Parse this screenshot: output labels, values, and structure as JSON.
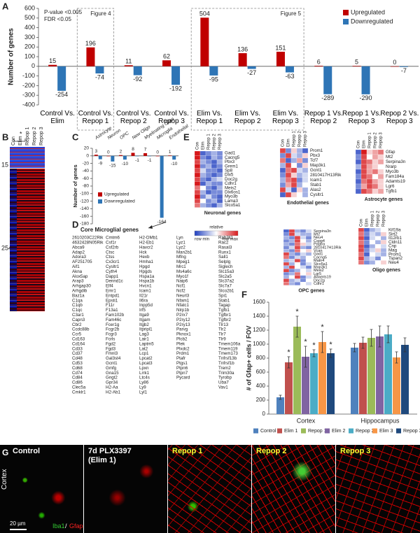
{
  "panel_labels": [
    "A",
    "B",
    "C",
    "D",
    "E",
    "F",
    "G"
  ],
  "chart_data": [
    {
      "type": "bar",
      "y_label": "Number of genes",
      "annotations": [
        "P-value <0.005",
        "FDR <0.05"
      ],
      "boxes": [
        "Figure 4",
        "Figure 5"
      ],
      "categories": [
        "Control Vs. Elim",
        "Control Vs. Repop 1",
        "Control Vs. Repop 2",
        "Control Vs. Repop 3",
        "Elim Vs. Repop 1",
        "Elim Vs. Repop 2",
        "Elim Vs. Repop 3",
        "Repop 1 Vs. Repop 2",
        "Repop 1 Vs. Repop 3",
        "Repop 2 Vs. Repop 3"
      ],
      "series": [
        {
          "name": "Upregulated",
          "color": "#c00000",
          "values": [
            15,
            196,
            11,
            62,
            504,
            136,
            151,
            6,
            5,
            0
          ]
        },
        {
          "name": "Downregulated",
          "color": "#2e75b6",
          "values": [
            -254,
            -74,
            -92,
            -192,
            -95,
            -27,
            -63,
            -289,
            -290,
            -7
          ]
        }
      ],
      "ylim": [
        -400,
        600
      ],
      "yticks": [
        -400,
        -300,
        -200,
        -100,
        0,
        100,
        200,
        300,
        400,
        500,
        600
      ],
      "legend": "upper right"
    },
    {
      "type": "bar",
      "y_label": "Number of genes",
      "categories": [
        "Astrocyte",
        "Neuron",
        "OPC",
        "New Oligo",
        "Myelinating Oligo",
        "Microglia",
        "Endothelial"
      ],
      "series": [
        {
          "name": "Upregulated",
          "color": "#c00000",
          "values": [
            3,
            0,
            2,
            8,
            7,
            0,
            1
          ]
        },
        {
          "name": "Downregulated",
          "color": "#2e75b6",
          "values": [
            -9,
            -15,
            -10,
            -1,
            -1,
            -164,
            -10
          ]
        }
      ],
      "ylim": [
        -180,
        20
      ],
      "yticks": [
        -180,
        -160,
        -140,
        -120,
        -100,
        -80,
        -60,
        -40,
        -20,
        0,
        20
      ],
      "legend": "lower left"
    },
    {
      "type": "bar",
      "y_label": "# of Gfap+ cells / FOV",
      "categories": [
        "Cortex",
        "Hippocampus"
      ],
      "series": [
        {
          "name": "Control",
          "color": "#4f81bd",
          "values": [
            240,
            950
          ],
          "errors": [
            30,
            60
          ]
        },
        {
          "name": "Elim 1",
          "color": "#c0504d",
          "values": [
            740,
            1020
          ],
          "errors": [
            80,
            80
          ],
          "significance": [
            "*",
            null
          ]
        },
        {
          "name": "Repop 1",
          "color": "#9bbb59",
          "values": [
            1250,
            1090
          ],
          "errors": [
            150,
            120
          ],
          "significance": [
            "*",
            null
          ]
        },
        {
          "name": "Elim 2",
          "color": "#8064a2",
          "values": [
            820,
            1110
          ],
          "errors": [
            150,
            150
          ],
          "significance": [
            "*",
            null
          ]
        },
        {
          "name": "Repop 2",
          "color": "#4bacc6",
          "values": [
            870,
            1140
          ],
          "errors": [
            50,
            120
          ],
          "significance": [
            "*",
            null
          ]
        },
        {
          "name": "Elim 3",
          "color": "#f79646",
          "values": [
            1030,
            810
          ],
          "errors": [
            150,
            80
          ],
          "significance": [
            "*",
            null
          ]
        },
        {
          "name": "Repop 3",
          "color": "#1f497d",
          "values": [
            870,
            990
          ],
          "errors": [
            60,
            100
          ],
          "significance": [
            "*",
            null
          ]
        }
      ],
      "ylim": [
        0,
        1600
      ],
      "yticks": [
        0,
        200,
        400,
        600,
        800,
        1000,
        1200,
        1400,
        1600
      ],
      "legend": "bottom"
    }
  ],
  "panel_b": {
    "column_labels": [
      "Con",
      "Elim",
      "Repop 1",
      "Repop 2",
      "Repop 3"
    ],
    "marker": "*",
    "cluster_labels": [
      15,
      254
    ]
  },
  "panel_d": {
    "title": "Core Microglial genes",
    "columns": [
      [
        "2610203C22Rik",
        "4632428N05Rik",
        "Abca9",
        "Adap2",
        "Adora3",
        "AF251705",
        "Aif1",
        "Akna",
        "Alox5ap",
        "Arap3",
        "Arhgap30",
        "Arhgdib",
        "Baz1a",
        "C1qa",
        "C1qb",
        "C1qc",
        "C3ar1",
        "Capn3",
        "Cbr2",
        "Ccdc88b",
        "Ccr5",
        "Cd163",
        "Cd164",
        "Cd33",
        "Cd37",
        "Cd48",
        "Cd53",
        "Cd68",
        "Cd74",
        "Cd84",
        "Cd86",
        "Clec5a",
        "Cmklr1"
      ],
      [
        "Cmtm6",
        "Csf1r",
        "Csf2rb",
        "Ctsc",
        "Ctss",
        "Cx3cr1",
        "Cysltr1",
        "Cyth4",
        "Dapp1",
        "Dennd1c",
        "Elf4",
        "Emr1",
        "Entpd1",
        "Epsti1",
        "F11r",
        "F13a1",
        "Fam102b",
        "Fam46c",
        "Fcer1g",
        "Fcgr2b",
        "Fcgr3",
        "Fcrls",
        "Fgd2",
        "Fgd3",
        "Fmnl3",
        "Gal3st4",
        "Gcnt1",
        "Gmfg",
        "Gna15",
        "Gngt2",
        "Gpr34",
        "H2-Aa",
        "H2-Ab1"
      ],
      [
        "H2-DMb1",
        "H2-Eb1",
        "Havcr2",
        "Hck",
        "Hexb",
        "Hmha1",
        "Hpgd",
        "Hpgds",
        "Hspa1a",
        "Hspa1b",
        "Hvcn1",
        "Icam1",
        "Il21r",
        "Il6ra",
        "Inpp5d",
        "Irf5",
        "Itga9",
        "Itgam",
        "Itgb2",
        "Itpripl1",
        "Lag3",
        "Lair1",
        "Laptm5",
        "Lat2",
        "Lcp1",
        "Lpcat2",
        "Lpcat3",
        "Lpxn",
        "Lrrk1",
        "Ltc4s",
        "Ly86",
        "Ly9",
        "Lyl1"
      ],
      [
        "Lyn",
        "Lyz1",
        "Lyz2",
        "Man2b1",
        "Mfng",
        "Mpeg1",
        "Mrc1",
        "Ms4a6c",
        "Myo1f",
        "Naip6",
        "Ncf1",
        "Ncf2",
        "Neurl3",
        "Nfam1",
        "Nfatc1",
        "Nlrp1b",
        "P2rx7",
        "P2ry12",
        "P2ry13",
        "Parvg",
        "Pknox1",
        "Plcb2",
        "Plek",
        "Plxdc2",
        "Prdm1",
        "Ptafr",
        "Ptgs1",
        "Ptpn6",
        "Ptpn7",
        "Pycard"
      ],
      [
        "Rab3il1",
        "Rac2",
        "Rasal3",
        "Runx1",
        "Sall1",
        "Selplg",
        "Siglech",
        "Slc15a3",
        "Slc2a5",
        "Slc37a2",
        "Slc7a7",
        "Slco2b1",
        "Spi1",
        "Stab1",
        "Tagap",
        "Tgfb1",
        "Tgfbr1",
        "Tgfbr2",
        "Tlr13",
        "Tlr2",
        "Tlr7",
        "Tlr9",
        "Tmem106a",
        "Tmem119",
        "Tmem173",
        "Tnfrsf13b",
        "Tnfrsf1b",
        "Trem2",
        "Trim30a",
        "Tyrobp",
        "Uba7",
        "Vav1"
      ]
    ]
  },
  "panel_e": {
    "column_labels": [
      "Con",
      "Elim",
      "Repop 1",
      "Repop 2",
      "Repop 3"
    ],
    "color_key": {
      "title": "relative",
      "min_label": "row min",
      "max_label": "row max"
    },
    "heatmaps": [
      {
        "title": "Neuronal genes",
        "genes": [
          "Gad1",
          "Cacng5",
          "Pbx3",
          "Grem1",
          "Sp8",
          "Dlx5",
          "Doc2g",
          "Cdhr1",
          "Meis2",
          "Dlx6os1",
          "Myo3b",
          "Lama3",
          "Slco5a1"
        ],
        "values": [
          [
            1,
            0.1,
            0.2,
            0.3,
            0.2
          ],
          [
            1,
            0.2,
            0.1,
            0.3,
            0.2
          ],
          [
            0.9,
            0.3,
            0.2,
            0.1,
            0.3
          ],
          [
            1,
            0.2,
            0.3,
            0.1,
            0.2
          ],
          [
            0.9,
            0.4,
            0.2,
            0.2,
            0.1
          ],
          [
            1,
            0.3,
            0.2,
            0.1,
            0.2
          ],
          [
            0.9,
            0.2,
            0.1,
            0.3,
            0.4
          ],
          [
            1,
            0.1,
            0.3,
            0.2,
            0.2
          ],
          [
            0.8,
            0.5,
            0.2,
            0.1,
            0.3
          ],
          [
            0.9,
            0.3,
            0.1,
            0.2,
            0.2
          ],
          [
            1,
            0.2,
            0.4,
            0.2,
            0.1
          ],
          [
            0.9,
            0.5,
            0.2,
            0.3,
            0.1
          ],
          [
            0.8,
            0.3,
            0.2,
            0.1,
            0.3
          ]
        ]
      },
      {
        "title": "Endothelial genes",
        "genes": [
          "Prom1",
          "Pbx3",
          "Tcf7",
          "Map3k1",
          "Gcnt1",
          "2810417H13Rik",
          "Icam1",
          "Stab1",
          "Alas2",
          "Cysltr1"
        ],
        "values": [
          [
            0.9,
            0.2,
            0.6,
            0.3,
            0.1
          ],
          [
            0.2,
            0.9,
            0.4,
            0.3,
            0.6
          ],
          [
            0.8,
            0.1,
            0.3,
            0.7,
            0.2
          ],
          [
            0.3,
            0.9,
            0.5,
            0.2,
            0.6
          ],
          [
            0.1,
            0.8,
            0.9,
            0.4,
            0.3
          ],
          [
            0.2,
            0.9,
            0.6,
            0.3,
            0.4
          ],
          [
            0.3,
            0.8,
            0.9,
            0.2,
            0.4
          ],
          [
            0.2,
            0.7,
            0.9,
            0.3,
            0.5
          ],
          [
            0.9,
            0.4,
            0.1,
            0.6,
            0.3
          ],
          [
            0.1,
            0.9,
            0.6,
            0.5,
            0.3
          ]
        ]
      },
      {
        "title": "Astrocyte genes",
        "genes": [
          "Gfap",
          "Mt2",
          "Serpina3n",
          "Nrarp",
          "Myo3b",
          "Fam184a",
          "Adamts19",
          "Lgr6",
          "Tgfb1"
        ],
        "values": [
          [
            0.1,
            1,
            0.6,
            0.7,
            0.8
          ],
          [
            0.2,
            0.9,
            0.5,
            0.7,
            0.6
          ],
          [
            0.1,
            0.9,
            0.8,
            0.6,
            0.7
          ],
          [
            0.3,
            0.9,
            0.7,
            0.6,
            0.5
          ],
          [
            0.1,
            0.9,
            0.7,
            0.8,
            0.6
          ],
          [
            0.2,
            0.9,
            0.8,
            0.5,
            0.7
          ],
          [
            0.1,
            0.8,
            0.9,
            0.7,
            0.6
          ],
          [
            0.2,
            0.7,
            0.9,
            0.8,
            0.6
          ],
          [
            0.1,
            0.9,
            0.8,
            0.6,
            0.7
          ]
        ]
      },
      {
        "title": "OPC genes",
        "genes": [
          "Serpina3n",
          "Mt2",
          "Neu4",
          "Cspg4",
          "Pdgfra",
          "2810417H13Rik",
          "Vcan",
          "Gad1",
          "Cacng5",
          "Matn4",
          "Slco5a1",
          "Map3k1",
          "Meis2",
          "Lgr5",
          "Adamts19",
          "Doc2g",
          "Cdhr1"
        ],
        "values": [
          [
            0.1,
            0.9,
            0.3,
            0.2,
            0.4
          ],
          [
            0.2,
            0.9,
            0.4,
            0.3,
            0.3
          ],
          [
            0.3,
            0.2,
            0.9,
            0.4,
            0.2
          ],
          [
            0.2,
            0.3,
            0.9,
            0.5,
            0.3
          ],
          [
            0.3,
            0.2,
            0.8,
            0.6,
            0.4
          ],
          [
            0.2,
            0.4,
            0.9,
            0.3,
            0.2
          ],
          [
            0.3,
            0.2,
            0.8,
            0.5,
            0.6
          ],
          [
            0.9,
            0.3,
            0.2,
            0.4,
            0.3
          ],
          [
            0.8,
            0.2,
            0.4,
            0.3,
            0.5
          ],
          [
            0.3,
            0.4,
            0.9,
            0.2,
            0.5
          ],
          [
            0.9,
            0.3,
            0.5,
            0.2,
            0.4
          ],
          [
            0.3,
            0.9,
            0.5,
            0.4,
            0.2
          ],
          [
            0.9,
            0.2,
            0.3,
            0.5,
            0.4
          ],
          [
            0.2,
            0.3,
            0.8,
            0.5,
            0.6
          ],
          [
            0.3,
            0.5,
            0.9,
            0.2,
            0.4
          ],
          [
            0.9,
            0.3,
            0.4,
            0.2,
            0.5
          ],
          [
            0.8,
            0.3,
            0.2,
            0.5,
            0.4
          ]
        ]
      },
      {
        "title": "Oligo genes",
        "genes": [
          "Kif19a",
          "Sirt2",
          "Il12rb1",
          "Cldn11",
          "Cnp",
          "Mag",
          "Prom1",
          "Tspan2",
          "Neu4"
        ],
        "values": [
          [
            0.9,
            0.1,
            0.3,
            0.4,
            0.5
          ],
          [
            0.8,
            0.2,
            0.4,
            0.3,
            0.6
          ],
          [
            0.9,
            0.1,
            0.4,
            0.5,
            0.3
          ],
          [
            0.8,
            0.2,
            0.5,
            0.3,
            0.6
          ],
          [
            0.9,
            0.1,
            0.3,
            0.5,
            0.4
          ],
          [
            0.9,
            0.2,
            0.4,
            0.6,
            0.3
          ],
          [
            0.8,
            0.1,
            0.5,
            0.4,
            0.3
          ],
          [
            0.9,
            0.3,
            0.4,
            0.2,
            0.5
          ],
          [
            0.8,
            0.2,
            0.3,
            0.5,
            0.6
          ]
        ]
      }
    ]
  },
  "panel_g": {
    "row_label": "Cortex",
    "scale_bar": "20 µm",
    "stain_labels": [
      "Iba1",
      "Gfap"
    ],
    "separator": "/",
    "panels": [
      {
        "title": "Control"
      },
      {
        "title": "7d PLX3397",
        "subtitle": "(Elim 1)"
      },
      {
        "title": "Repop 1"
      },
      {
        "title": "Repop 2"
      },
      {
        "title": "Repop 3"
      }
    ]
  }
}
